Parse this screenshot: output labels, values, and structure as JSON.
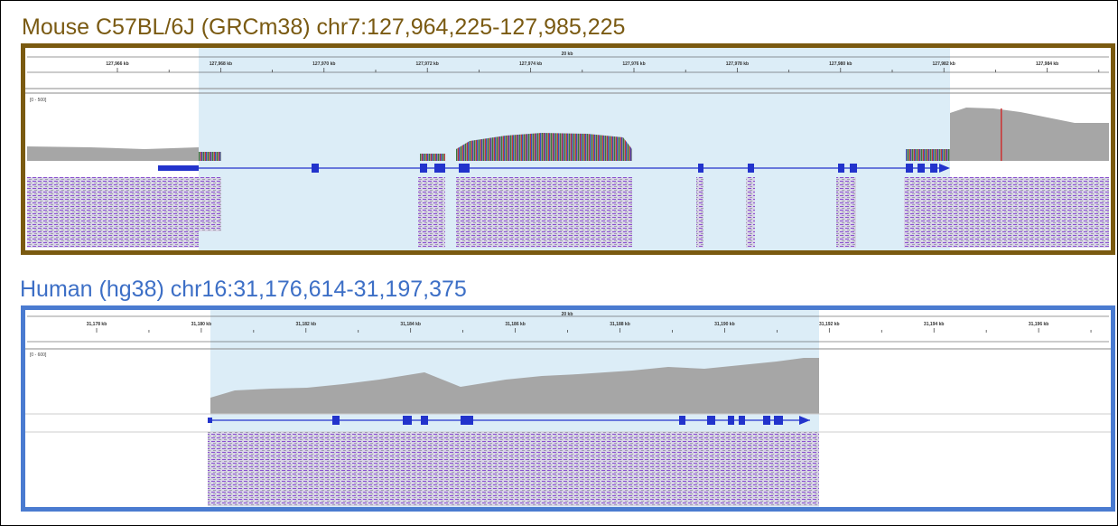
{
  "panels": [
    {
      "title": "Mouse C57BL/6J (GRCm38) chr7:127,964,225-127,985,225",
      "span": "20 kb",
      "range": "[0 - 500]",
      "ticks": [
        "127,966 kb",
        "127,968 kb",
        "127,970 kb",
        "127,972 kb",
        "127,974 kb",
        "127,976 kb",
        "127,978 kb",
        "127,980 kb",
        "127,982 kb",
        "127,984 kb"
      ]
    },
    {
      "title": "Human (hg38) chr16:31,176,614-31,197,375",
      "span": "20 kb",
      "range": "[0 - 600]",
      "ticks": [
        "31,178 kb",
        "31,180 kb",
        "31,182 kb",
        "31,184 kb",
        "31,186 kb",
        "31,188 kb",
        "31,190 kb",
        "31,192 kb",
        "31,194 kb",
        "31,196 kb"
      ]
    }
  ]
}
